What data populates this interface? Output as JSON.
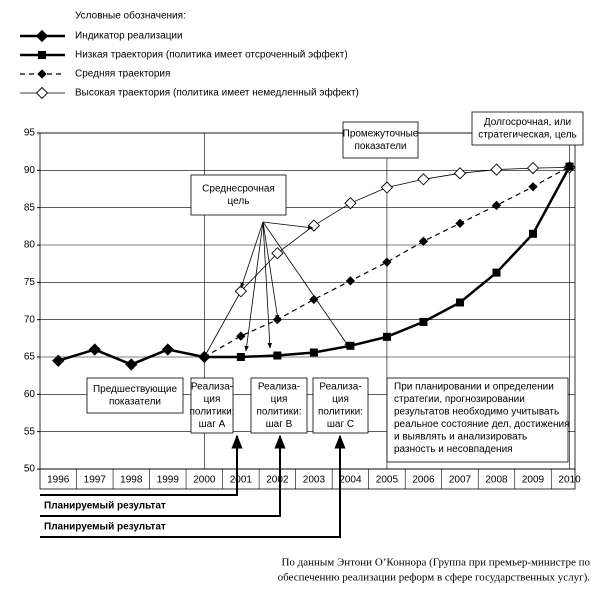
{
  "chart_data": {
    "type": "line",
    "legend_title": "Условные обозначения:",
    "x": [
      1996,
      1997,
      1998,
      1999,
      2000,
      2001,
      2002,
      2003,
      2004,
      2005,
      2006,
      2007,
      2008,
      2009,
      2010
    ],
    "xlim": [
      1995.5,
      2010.15
    ],
    "xticks": [
      1996,
      1997,
      1998,
      1999,
      2000,
      2001,
      2002,
      2003,
      2004,
      2005,
      2006,
      2007,
      2008,
      2009,
      2010
    ],
    "x_gridlines": [
      2000,
      2005,
      2010
    ],
    "ylim": [
      50,
      95
    ],
    "yticks": [
      50,
      55,
      60,
      65,
      70,
      75,
      80,
      85,
      90,
      95
    ],
    "grid": true,
    "series": [
      {
        "name": "Индикатор реализации",
        "color": "#000000",
        "marker": "diamond",
        "line_style": "solid",
        "line_width": 2.5,
        "values": [
          64.5,
          66,
          64,
          66,
          65,
          null,
          null,
          null,
          null,
          null,
          null,
          null,
          null,
          null,
          null
        ]
      },
      {
        "name": "Низкая траектория (политика имеет отсроченный эффект)",
        "color": "#000000",
        "marker": "square",
        "line_style": "solid",
        "line_width": 2.5,
        "values": [
          null,
          null,
          null,
          null,
          65,
          65,
          65.2,
          65.6,
          66.5,
          67.7,
          69.7,
          72.3,
          76.3,
          81.5,
          90.5
        ]
      },
      {
        "name": "Средняя траектория",
        "color": "#000000",
        "marker": "small-diamond",
        "line_style": "dashed",
        "line_width": 1.2,
        "values": [
          null,
          null,
          null,
          null,
          65,
          67.8,
          70,
          72.7,
          75.2,
          77.7,
          80.5,
          82.9,
          85.3,
          87.8,
          90.5
        ]
      },
      {
        "name": "Высокая траектория (политика имеет немедленный эффект)",
        "color": "#000000",
        "marker": "open-diamond",
        "line_style": "solid",
        "line_width": 0.8,
        "values": [
          null,
          null,
          null,
          null,
          65,
          73.8,
          78.9,
          82.6,
          85.6,
          87.7,
          88.8,
          89.6,
          90.1,
          90.3,
          90.4
        ]
      }
    ],
    "annotations": {
      "medium_goal": [
        "Среднесрочная",
        "цель"
      ],
      "intermediate": [
        "Промежуточные",
        "показатели"
      ],
      "long_term": [
        "Долгосрочная, или",
        "стратегическая, цель"
      ],
      "previous": [
        "Предшествующие",
        "показатели"
      ],
      "step_a": [
        "Реализа-",
        "ция",
        "политики:",
        "шаг A"
      ],
      "step_b": [
        "Реализа-",
        "ция",
        "политики:",
        "шаг B"
      ],
      "step_c": [
        "Реализа-",
        "ция",
        "политики:",
        "шаг C"
      ],
      "note": [
        "При планировании и определении",
        "стратегии, прогнозировании",
        "результатов необходимо учитывать",
        "реальное состояние дел, достижения",
        "и выявлять и анализировать",
        "разность и несовпадения"
      ]
    },
    "planned": [
      "Планируемый результат",
      "Планируемый результат"
    ],
    "source": [
      "По данным Энтони О’Коннора (Группа при премьер-министре по",
      "обеспечению реализации реформ в сфере государственных услуг)."
    ]
  }
}
